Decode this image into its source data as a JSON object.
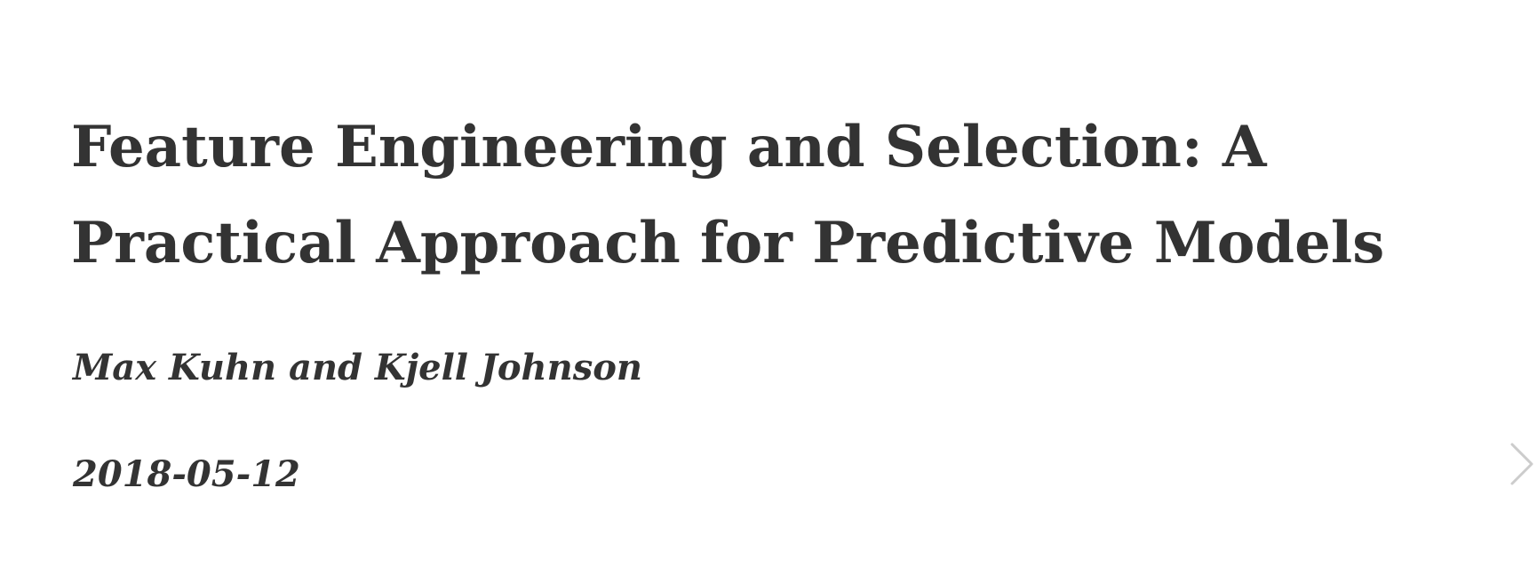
{
  "book": {
    "title": "Feature Engineering and Selection: A Practical Approach for Predictive Models",
    "authors": "Max Kuhn and Kjell Johnson",
    "date": "2018-05-12"
  },
  "navigation": {
    "next_icon": "chevron-right-icon",
    "icon_color": "#cccccc"
  },
  "colors": {
    "text": "#333333",
    "background": "#ffffff"
  }
}
